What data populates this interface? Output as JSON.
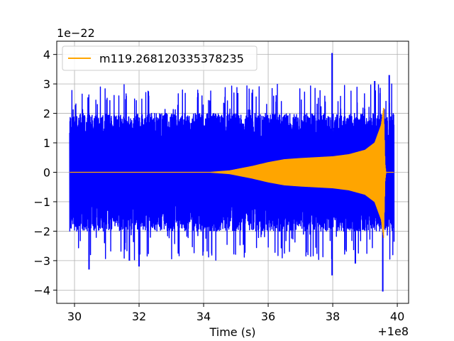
{
  "chart_data": {
    "type": "line",
    "title": "",
    "xlabel": "Time (s)",
    "ylabel": "",
    "x_offset_text": "+1e8",
    "y_scale_text": "1e−22",
    "xlim": [
      29.45,
      40.35
    ],
    "ylim": [
      -4.45,
      4.45
    ],
    "x_ticks": [
      30,
      32,
      34,
      36,
      38,
      40
    ],
    "x_tick_labels": [
      "30",
      "32",
      "34",
      "36",
      "38",
      "40"
    ],
    "y_ticks": [
      -4,
      -3,
      -2,
      -1,
      0,
      1,
      2,
      3,
      4
    ],
    "y_tick_labels": [
      "−4",
      "−3",
      "−2",
      "−1",
      "0",
      "1",
      "2",
      "3",
      "4"
    ],
    "grid": true,
    "legend_position": "upper-left",
    "series": [
      {
        "name": "",
        "color": "#0000ff",
        "style": "noisy strain data",
        "x_range": [
          29.85,
          39.9
        ],
        "typical_envelope": 2.0,
        "peaks": [
          {
            "x": 37.98,
            "y": 4.05
          },
          {
            "x": 39.55,
            "y": -4.05
          },
          {
            "x": 30.45,
            "y": -3.3
          },
          {
            "x": 37.98,
            "y": -3.5
          },
          {
            "x": 32.0,
            "y": -3.2
          },
          {
            "x": 39.75,
            "y": 3.3
          },
          {
            "x": 39.3,
            "y": 3.1
          },
          {
            "x": 38.7,
            "y": -3.1
          },
          {
            "x": 31.7,
            "y": -3.0
          }
        ]
      },
      {
        "name": "m119.268120335378235",
        "color": "#ffa500",
        "style": "chirp waveform",
        "x_range": [
          29.85,
          39.9
        ],
        "merger_x": 39.6,
        "envelope": [
          {
            "x": 29.85,
            "y": 0.0
          },
          {
            "x": 34.2,
            "y": 0.0
          },
          {
            "x": 34.8,
            "y": 0.05
          },
          {
            "x": 35.5,
            "y": 0.2
          },
          {
            "x": 36.0,
            "y": 0.33
          },
          {
            "x": 36.5,
            "y": 0.43
          },
          {
            "x": 37.0,
            "y": 0.47
          },
          {
            "x": 37.5,
            "y": 0.5
          },
          {
            "x": 38.0,
            "y": 0.53
          },
          {
            "x": 38.5,
            "y": 0.6
          },
          {
            "x": 39.0,
            "y": 0.75
          },
          {
            "x": 39.3,
            "y": 1.0
          },
          {
            "x": 39.5,
            "y": 1.6
          },
          {
            "x": 39.58,
            "y": 2.25
          },
          {
            "x": 39.62,
            "y": 0.3
          },
          {
            "x": 39.65,
            "y": 0.0
          },
          {
            "x": 39.9,
            "y": 0.0
          }
        ]
      }
    ]
  }
}
